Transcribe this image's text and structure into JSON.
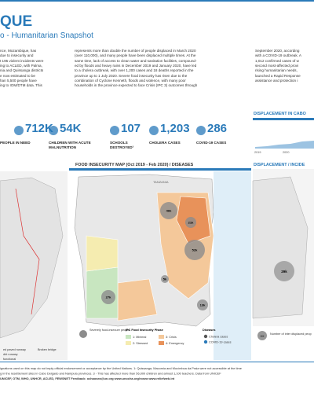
{
  "header": {
    "title": "QUE",
    "subtitle": "o - Humanitarian Snapshot"
  },
  "columns": [
    [
      "nce, Mozambique, has",
      "due to insecurity and",
      "t 195 violent incidents were",
      "ing to ACLED, with Palma,",
      "nia and Quissanga districts",
      "e now estimated to be",
      "han 5,500 people have",
      "ing to IOM/DTM data. This"
    ],
    [
      "represents more than double the number of people displaced in March 2020",
      "(over 110,000), and many people have been displaced multiple times. At the",
      "same time, lack of access to clean water and sanitation facilities, compound-",
      "ed by floods and heavy rains in December 2019 and January 2020, have led",
      "to a cholera outbreak, with over 1,200 cases and 18 deaths reported in the",
      "province up to 1 July 2020. Severe food insecurity has risen due to the",
      "combination of Cyclone Kenneth, floods and violence, with many poor",
      "households in the province expected to face Crisis (IPC 3) outcomes through"
    ],
    [
      "September 2020, according",
      "with a COVID-19 outbreak. A",
      "1,012 confirmed cases of w",
      "second most-affected provi",
      "rising humanitarian needs,",
      "launched a Rapid Response",
      "assistance and protection i"
    ]
  ],
  "stats": [
    {
      "value": "712K",
      "label": "PEOPLE IN NEED"
    },
    {
      "value": "54K",
      "label": "CHILDREN WITH ACUTE MALNUTRITION"
    },
    {
      "value": "107",
      "label": "SCHOOLS DESTROYED³"
    },
    {
      "value": "1,203",
      "label": "CHOLERA CASES"
    },
    {
      "value": "286",
      "label": "COVID-19 CASES"
    }
  ],
  "center_map": {
    "title": "FOOD INSECURITY MAP (Oct 2019 - Feb 2020) / DISEASES",
    "country": "TANZANIA",
    "bubbles": [
      "46k",
      "21k",
      "52k",
      "5k",
      "13k",
      "27k"
    ],
    "legend": {
      "bubble": "Severely food-insecure people",
      "ipc_title": "IPC Food Insecurity Phase",
      "phases": [
        "1: Minimal",
        "2: Stressed",
        "3: Crisis",
        "4: Emergency"
      ],
      "disease_title": "Diseases",
      "diseases": [
        "Cholera cases",
        "COVID-19 cases"
      ]
    }
  },
  "left_map": {
    "legend": [
      "ed paved runway",
      "Broken bridge",
      "dirt runway",
      "functional"
    ]
  },
  "right_panel": {
    "chart_title": "DISPLACEMENT IN CABO",
    "years": [
      "2019",
      "2020"
    ],
    "map_title": "DISPLACEMENT / INCIDE",
    "bubble": "29k",
    "legend_marker": "XX",
    "legend": "Number of inter displaced peop"
  },
  "footer": [
    "ignations used on this map do not imply official endorsement or acceptance by the United Nations. 1: Quissanga, Macomia and Mocímboa da Praia were not accessible at the time",
    "g in the resettlement sites in Cabo Delgado and Nampula provinces. 3 - This has affected more than 56,000 children and almost 1,100 teachers. Data from UNICEF",
    "UNICEF, OTM, WHO, UNHCR, ACLED, FEWSNET   Feedback: ochaosea@un.org   www.unocha.org/rosea   www.reliefweb.int"
  ]
}
